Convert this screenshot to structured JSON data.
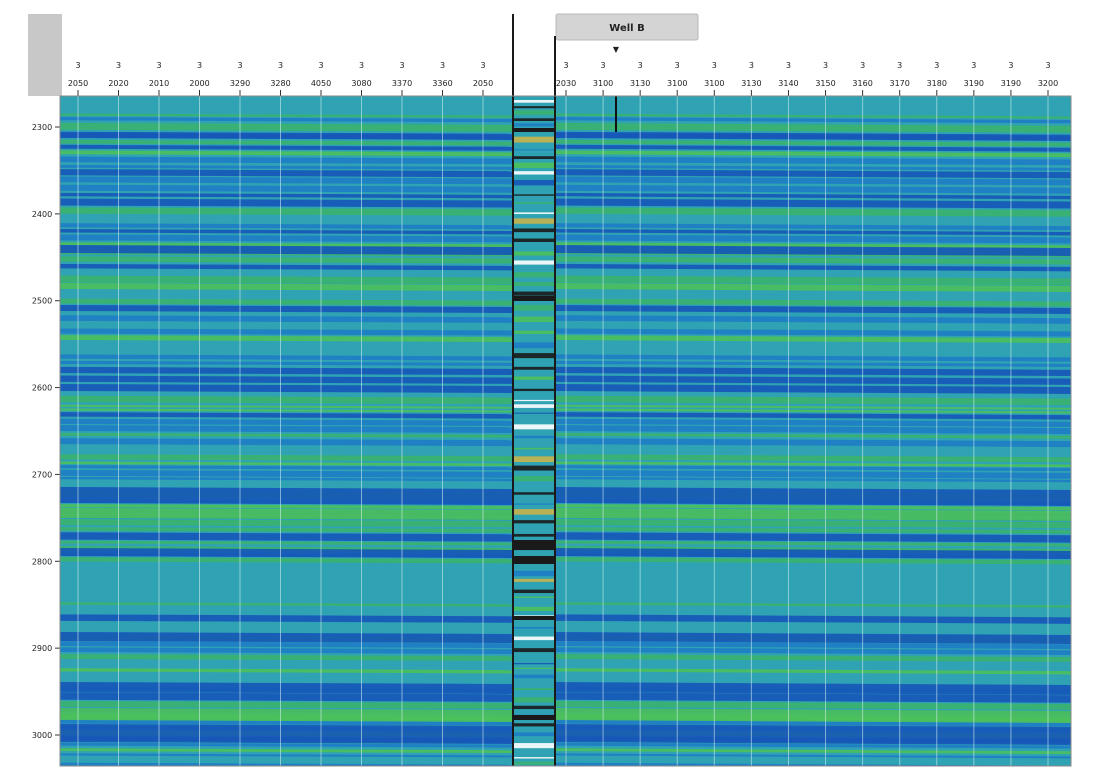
{
  "well": {
    "name": "Well B",
    "marker_symbol": "▼"
  },
  "header": {
    "left_traces": [
      {
        "line": "3",
        "trace": "2050"
      },
      {
        "line": "3",
        "trace": "2020"
      },
      {
        "line": "3",
        "trace": "2010"
      },
      {
        "line": "3",
        "trace": "2000"
      },
      {
        "line": "3",
        "trace": "3290"
      },
      {
        "line": "3",
        "trace": "3280"
      },
      {
        "line": "3",
        "trace": "4050"
      },
      {
        "line": "3",
        "trace": "3080"
      },
      {
        "line": "3",
        "trace": "3370"
      },
      {
        "line": "3",
        "trace": "3360"
      },
      {
        "line": "3",
        "trace": "2050"
      }
    ],
    "right_traces": [
      {
        "line": "3",
        "trace": "2030"
      },
      {
        "line": "3",
        "trace": "3100"
      },
      {
        "line": "3",
        "trace": "3130"
      },
      {
        "line": "3",
        "trace": "3100"
      },
      {
        "line": "3",
        "trace": "3100"
      },
      {
        "line": "3",
        "trace": "3130"
      },
      {
        "line": "3",
        "trace": "3140"
      },
      {
        "line": "3",
        "trace": "3150"
      },
      {
        "line": "3",
        "trace": "3160"
      },
      {
        "line": "3",
        "trace": "3170"
      },
      {
        "line": "3",
        "trace": "3180"
      },
      {
        "line": "3",
        "trace": "3190"
      },
      {
        "line": "3",
        "trace": "3190"
      },
      {
        "line": "3",
        "trace": "3200"
      }
    ]
  },
  "time_axis": {
    "labels": [
      "2300",
      "2400",
      "2500",
      "2600",
      "2700",
      "2800",
      "2900",
      "3000"
    ]
  },
  "colors": {
    "background": "#2fa3b3",
    "strong_trough": "#1656b8",
    "trough": "#1e7cc4",
    "peak": "#3bb36e",
    "strong_peak": "#4cc05a",
    "header_tab": "#d4d4d4",
    "well_track": "#1a1a1a"
  }
}
